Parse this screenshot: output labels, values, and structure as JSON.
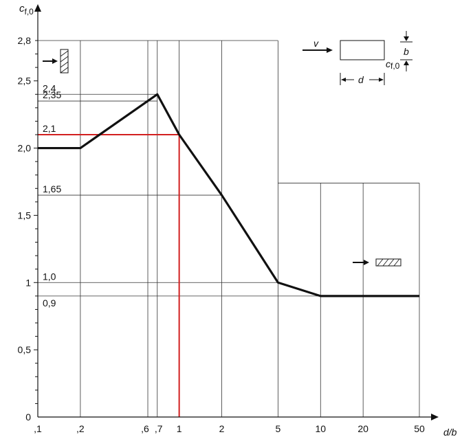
{
  "chart_data": {
    "type": "line",
    "xscale": "log",
    "xlim": [
      0.1,
      50
    ],
    "ylim": [
      0,
      2.8
    ],
    "ylabel": "c_f,0",
    "ylabel_main": "c",
    "ylabel_sub": "f,0",
    "xlabel": "d/b",
    "grid": true,
    "x_ticks": [
      {
        "value": 0.1,
        "label": ",1"
      },
      {
        "value": 0.2,
        "label": ",2"
      },
      {
        "value": 0.6,
        "label": ",6"
      },
      {
        "value": 0.7,
        "label": ",7"
      },
      {
        "value": 1,
        "label": "1"
      },
      {
        "value": 2,
        "label": "2"
      },
      {
        "value": 5,
        "label": "5"
      },
      {
        "value": 10,
        "label": "10"
      },
      {
        "value": 20,
        "label": "20"
      },
      {
        "value": 50,
        "label": "50"
      }
    ],
    "y_ticks": [
      {
        "value": 0,
        "label": "0"
      },
      {
        "value": 0.5,
        "label": "0,5"
      },
      {
        "value": 1,
        "label": "1"
      },
      {
        "value": 1.5,
        "label": "1,5"
      },
      {
        "value": 2.0,
        "label": "2,0"
      },
      {
        "value": 2.5,
        "label": "2,5"
      },
      {
        "value": 2.8,
        "label": "2,8"
      }
    ],
    "reference_lines": [
      {
        "value": 2.4,
        "label": "2,4"
      },
      {
        "value": 2.35,
        "label": "2,35"
      },
      {
        "value": 2.1,
        "label": "2,1"
      },
      {
        "value": 1.65,
        "label": "1,65"
      },
      {
        "value": 1.0,
        "label": "1,0"
      },
      {
        "value": 0.9,
        "label": "0,9"
      }
    ],
    "series": [
      {
        "x": [
          0.1,
          0.2,
          0.7,
          1,
          2,
          5,
          10,
          50
        ],
        "y": [
          2.0,
          2.0,
          2.4,
          2.1,
          1.65,
          1.0,
          0.9,
          0.9
        ]
      }
    ],
    "highlight": {
      "x": 1,
      "y": 2.1,
      "color": "#d21f1f"
    },
    "diagram_labels": {
      "v": "v",
      "d": "d",
      "b": "b",
      "c_main": "c",
      "c_sub": "f,0"
    },
    "colors": {
      "curve": "#111111",
      "grid": "#333333",
      "highlight": "#d21f1f"
    }
  }
}
